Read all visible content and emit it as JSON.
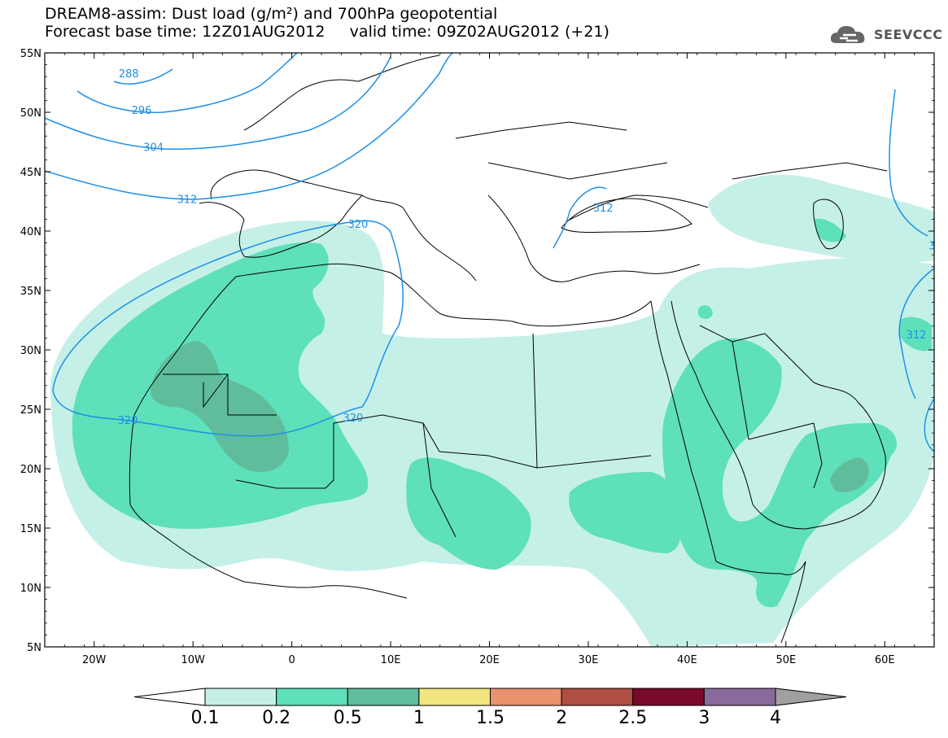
{
  "title": {
    "line1": "DREAM8-assim: Dust load (g/m²) and 700hPa geopotential",
    "line2": "Forecast base time: 12Z01AUG2012     valid time: 09Z02AUG2012 (+21)"
  },
  "logo": {
    "text": "SEEVCCC",
    "icon": "cloud-logo-icon"
  },
  "axes": {
    "lat_labels": [
      "55N",
      "50N",
      "45N",
      "40N",
      "35N",
      "30N",
      "25N",
      "20N",
      "15N",
      "10N",
      "5N"
    ],
    "lat_values": [
      55,
      50,
      45,
      40,
      35,
      30,
      25,
      20,
      15,
      10,
      5
    ],
    "lon_labels": [
      "20W",
      "10W",
      "0",
      "10E",
      "20E",
      "30E",
      "40E",
      "50E",
      "60E"
    ],
    "lon_values": [
      -20,
      -10,
      0,
      10,
      20,
      30,
      40,
      50,
      60
    ],
    "lon_range": [
      -25,
      65
    ],
    "lat_range": [
      5,
      55
    ]
  },
  "contours": {
    "color": "#1e90e6",
    "labels": [
      {
        "text": "288",
        "lon": -16.5,
        "lat": 53.3
      },
      {
        "text": "296",
        "lon": -15.2,
        "lat": 50.2
      },
      {
        "text": "304",
        "lon": -14.0,
        "lat": 47.1
      },
      {
        "text": "312",
        "lon": -10.6,
        "lat": 42.7
      },
      {
        "text": "320",
        "lon": 6.7,
        "lat": 40.6
      },
      {
        "text": "320",
        "lon": -16.6,
        "lat": 24.1
      },
      {
        "text": "320",
        "lon": 6.2,
        "lat": 24.3
      },
      {
        "text": "312",
        "lon": 31.5,
        "lat": 42.0
      },
      {
        "text": "312",
        "lon": 63.2,
        "lat": 31.3
      },
      {
        "text": "3",
        "lon": 64.8,
        "lat": 38.8
      }
    ]
  },
  "colorbar": {
    "levels": [
      "0.1",
      "0.2",
      "0.5",
      "1",
      "1.5",
      "2",
      "2.5",
      "3",
      "4"
    ],
    "colors": [
      "#c5f0e8",
      "#5ee0bb",
      "#5fbd9b",
      "#f0e57e",
      "#e8936e",
      "#b04e44",
      "#7a0a2a",
      "#8a6a9c"
    ],
    "under_color": "#ffffff",
    "over_color": "#a0a0a0"
  },
  "fill_colors": {
    "light": "#c5f0e8",
    "medium": "#5ee0bb",
    "dark": "#5fbd9b"
  }
}
